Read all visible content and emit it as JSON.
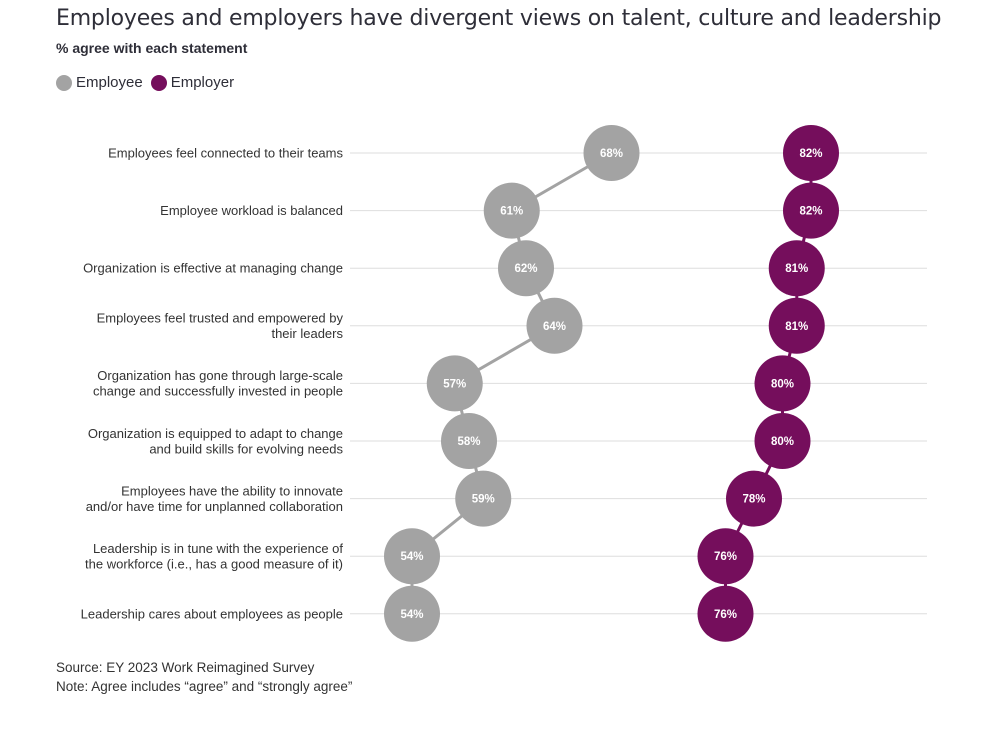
{
  "title": "Employees and employers have divergent views on talent, culture and leadership",
  "subtitle": "% agree with each statement",
  "legend": [
    {
      "label": "Employee",
      "color": "#a3a3a3"
    },
    {
      "label": "Employer",
      "color": "#750e5c"
    }
  ],
  "footer": {
    "source": "Source: EY 2023 Work Reimagined Survey",
    "note": "Note: Agree includes “agree” and “strongly agree”"
  },
  "chart_data": {
    "type": "scatter",
    "categories": [
      [
        "Employees feel connected to their teams"
      ],
      [
        "Employee workload is balanced"
      ],
      [
        "Organization is effective at managing change"
      ],
      [
        "Employees feel trusted and empowered by",
        "their leaders"
      ],
      [
        "Organization has gone through large-scale",
        "change and successfully invested in people"
      ],
      [
        "Organization is equipped to adapt to change",
        "and build skills for evolving needs"
      ],
      [
        "Employees have the ability to innovate",
        "and/or have time for unplanned collaboration"
      ],
      [
        "Leadership is in tune with the experience of",
        "the workforce (i.e., has a good measure of it)"
      ],
      [
        "Leadership cares about employees as people"
      ]
    ],
    "series": [
      {
        "name": "Employee",
        "color": "#a3a3a3",
        "values": [
          68,
          61,
          62,
          64,
          57,
          58,
          59,
          54,
          54
        ],
        "labels": [
          "68%",
          "61%",
          "62%",
          "64%",
          "57%",
          "58%",
          "59%",
          "54%",
          "54%"
        ]
      },
      {
        "name": "Employer",
        "color": "#750e5c",
        "values": [
          82,
          82,
          81,
          81,
          80,
          80,
          78,
          76,
          76
        ],
        "labels": [
          "82%",
          "82%",
          "81%",
          "81%",
          "80%",
          "80%",
          "78%",
          "76%",
          "76%"
        ]
      }
    ],
    "grid": true,
    "legend_position": "top-left"
  }
}
